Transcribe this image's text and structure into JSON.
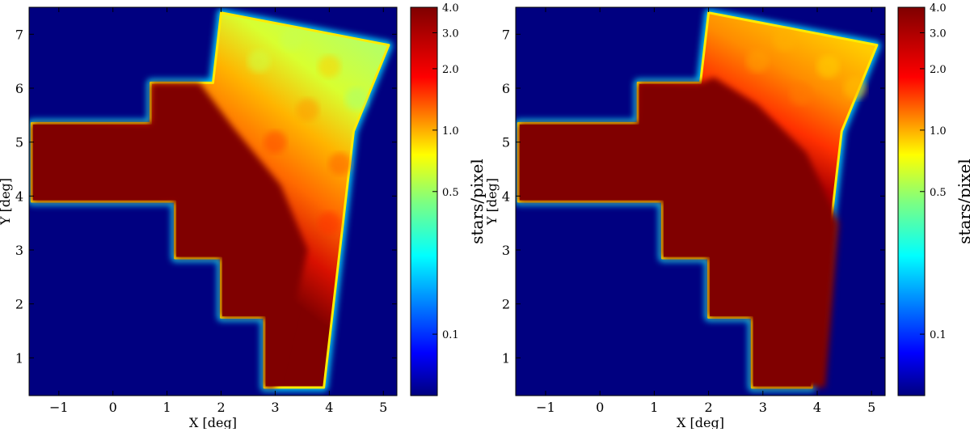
{
  "chart_data": [
    {
      "type": "heatmap",
      "panel": "left",
      "xlabel": "X [deg]",
      "ylabel": "Y [deg]",
      "xlim": [
        -1.55,
        5.25
      ],
      "ylim": [
        0.3,
        7.5
      ],
      "xticks": [
        -1,
        0,
        1,
        2,
        3,
        4,
        5
      ],
      "yticks": [
        1,
        2,
        3,
        4,
        5,
        6,
        7
      ],
      "colorbar": {
        "label": "stars/pixel",
        "scale": "log",
        "range": [
          0.05,
          4.0
        ],
        "ticks": [
          0.1,
          0.5,
          1.0,
          2.0,
          3.0,
          4.0
        ],
        "tick_labels": [
          "0.1",
          "0.5",
          "1.0",
          "2.0",
          "3.0",
          "4.0"
        ],
        "colormap": "jet"
      },
      "background_color": "#000080",
      "footprint_polygon": [
        [
          -1.5,
          3.9
        ],
        [
          1.15,
          3.9
        ],
        [
          1.15,
          2.85
        ],
        [
          2.0,
          2.85
        ],
        [
          2.0,
          1.75
        ],
        [
          2.8,
          1.75
        ],
        [
          2.8,
          0.45
        ],
        [
          3.9,
          0.45
        ],
        [
          4.45,
          5.2
        ],
        [
          5.1,
          6.8
        ],
        [
          2.0,
          7.4
        ],
        [
          1.85,
          6.1
        ],
        [
          0.7,
          6.1
        ],
        [
          0.7,
          5.35
        ],
        [
          -1.5,
          5.35
        ]
      ],
      "density_description": "saturated (>=4 stars/pixel) over western/central footprint, declining to ~0.5-1.5 stars/pixel toward the north-east corner",
      "saturation_boundary": [
        [
          3.0,
          0.45
        ],
        [
          3.6,
          3.0
        ],
        [
          3.1,
          4.2
        ],
        [
          2.2,
          5.3
        ],
        [
          1.6,
          6.1
        ]
      ]
    },
    {
      "type": "heatmap",
      "panel": "right",
      "xlabel": "X [deg]",
      "ylabel": "Y [deg]",
      "xlim": [
        -1.55,
        5.25
      ],
      "ylim": [
        0.3,
        7.5
      ],
      "xticks": [
        -1,
        0,
        1,
        2,
        3,
        4,
        5
      ],
      "yticks": [
        1,
        2,
        3,
        4,
        5,
        6,
        7
      ],
      "colorbar": {
        "label": "stars/pixel",
        "scale": "log",
        "range": [
          0.05,
          4.0
        ],
        "ticks": [
          0.1,
          0.5,
          1.0,
          2.0,
          3.0,
          4.0
        ],
        "tick_labels": [
          "0.1",
          "0.5",
          "1.0",
          "2.0",
          "3.0",
          "4.0"
        ],
        "colormap": "jet"
      },
      "background_color": "#000080",
      "footprint_polygon": [
        [
          -1.5,
          3.9
        ],
        [
          1.15,
          3.9
        ],
        [
          1.15,
          2.85
        ],
        [
          2.0,
          2.85
        ],
        [
          2.0,
          1.75
        ],
        [
          2.8,
          1.75
        ],
        [
          2.8,
          0.45
        ],
        [
          3.9,
          0.45
        ],
        [
          4.45,
          5.2
        ],
        [
          5.1,
          6.8
        ],
        [
          2.0,
          7.4
        ],
        [
          1.85,
          6.1
        ],
        [
          0.7,
          6.1
        ],
        [
          0.7,
          5.35
        ],
        [
          -1.5,
          5.35
        ]
      ],
      "density_description": "saturated (>=4 stars/pixel) over most of the footprint, declining to ~1.5-2.5 stars/pixel toward the north-east corner",
      "saturation_boundary": [
        [
          4.15,
          0.45
        ],
        [
          4.4,
          3.5
        ],
        [
          3.8,
          4.8
        ],
        [
          2.9,
          5.7
        ],
        [
          2.1,
          6.2
        ]
      ]
    }
  ]
}
